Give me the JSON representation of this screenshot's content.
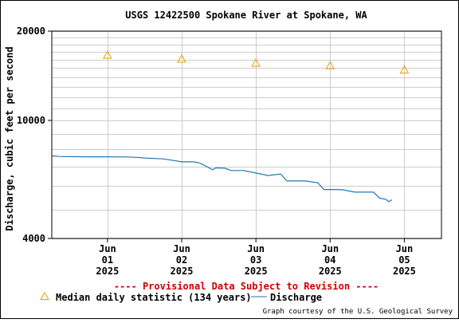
{
  "chart_data": {
    "type": "line",
    "title": "USGS 12422500 Spokane River at Spokane, WA",
    "ylabel": "Discharge, cubic feet per second",
    "xlabel": "",
    "y_scale": "log",
    "ylim": [
      4000,
      20000
    ],
    "y_ticks": [
      {
        "value": 4000,
        "label": "4000"
      },
      {
        "value": 10000,
        "label": "10000"
      },
      {
        "value": 20000,
        "label": "20000"
      }
    ],
    "y_minor_gridlines": [
      5000,
      6000,
      7000,
      8000,
      9000,
      11000,
      12000,
      13000,
      14000,
      15000,
      16000,
      17000,
      18000,
      19000
    ],
    "xlim": [
      "2025-05-31T06:00",
      "2025-06-05T12:00"
    ],
    "x_ticks": [
      {
        "value": "2025-06-01T00:00",
        "lines": [
          "Jun",
          "01",
          "2025"
        ]
      },
      {
        "value": "2025-06-02T00:00",
        "lines": [
          "Jun",
          "02",
          "2025"
        ]
      },
      {
        "value": "2025-06-03T00:00",
        "lines": [
          "Jun",
          "03",
          "2025"
        ]
      },
      {
        "value": "2025-06-04T00:00",
        "lines": [
          "Jun",
          "04",
          "2025"
        ]
      },
      {
        "value": "2025-06-05T00:00",
        "lines": [
          "Jun",
          "05",
          "2025"
        ]
      }
    ],
    "grid": true,
    "series": [
      {
        "name": "Median daily statistic (134 years)",
        "kind": "markers",
        "marker": "triangle",
        "color": "#e8a000",
        "points": [
          {
            "x": "2025-06-01T00:00",
            "y": 16600
          },
          {
            "x": "2025-06-02T00:00",
            "y": 16100
          },
          {
            "x": "2025-06-03T00:00",
            "y": 15600
          },
          {
            "x": "2025-06-04T00:00",
            "y": 15300
          },
          {
            "x": "2025-06-05T00:00",
            "y": 14800
          }
        ]
      },
      {
        "name": "Discharge",
        "kind": "line",
        "color": "#1f78b4",
        "points": [
          {
            "x": "2025-05-31T06:00",
            "y": 7520
          },
          {
            "x": "2025-05-31T06:40",
            "y": 7600
          },
          {
            "x": "2025-05-31T08:00",
            "y": 7560
          },
          {
            "x": "2025-05-31T12:00",
            "y": 7550
          },
          {
            "x": "2025-05-31T18:00",
            "y": 7540
          },
          {
            "x": "2025-06-01T00:00",
            "y": 7540
          },
          {
            "x": "2025-06-01T06:00",
            "y": 7530
          },
          {
            "x": "2025-06-01T09:00",
            "y": 7510
          },
          {
            "x": "2025-06-01T12:00",
            "y": 7470
          },
          {
            "x": "2025-06-01T18:00",
            "y": 7420
          },
          {
            "x": "2025-06-02T00:00",
            "y": 7250
          },
          {
            "x": "2025-06-02T04:00",
            "y": 7250
          },
          {
            "x": "2025-06-02T06:00",
            "y": 7170
          },
          {
            "x": "2025-06-02T10:00",
            "y": 6820
          },
          {
            "x": "2025-06-02T11:00",
            "y": 6920
          },
          {
            "x": "2025-06-02T14:00",
            "y": 6900
          },
          {
            "x": "2025-06-02T16:00",
            "y": 6780
          },
          {
            "x": "2025-06-02T20:00",
            "y": 6780
          },
          {
            "x": "2025-06-03T00:00",
            "y": 6650
          },
          {
            "x": "2025-06-03T04:00",
            "y": 6520
          },
          {
            "x": "2025-06-03T08:00",
            "y": 6600
          },
          {
            "x": "2025-06-03T10:00",
            "y": 6250
          },
          {
            "x": "2025-06-03T16:00",
            "y": 6250
          },
          {
            "x": "2025-06-03T20:00",
            "y": 6160
          },
          {
            "x": "2025-06-03T22:00",
            "y": 5850
          },
          {
            "x": "2025-06-04T01:00",
            "y": 5850
          },
          {
            "x": "2025-06-04T04:00",
            "y": 5840
          },
          {
            "x": "2025-06-04T08:00",
            "y": 5730
          },
          {
            "x": "2025-06-04T14:00",
            "y": 5730
          },
          {
            "x": "2025-06-04T16:00",
            "y": 5470
          },
          {
            "x": "2025-06-04T18:00",
            "y": 5420
          },
          {
            "x": "2025-06-04T19:00",
            "y": 5320
          },
          {
            "x": "2025-06-04T20:00",
            "y": 5400
          }
        ]
      }
    ],
    "legend": {
      "placement": "bottom",
      "items": [
        {
          "label": "Median daily statistic (134 years)",
          "marker": "triangle",
          "color": "#e8a000"
        },
        {
          "label": "Discharge",
          "marker": "line",
          "color": "#1f78b4"
        }
      ]
    },
    "annotations": [
      {
        "text": "---- Provisional Data Subject to Revision ----",
        "color": "#cc0000"
      },
      {
        "text": "Graph courtesy of the U.S. Geological Survey"
      }
    ]
  }
}
